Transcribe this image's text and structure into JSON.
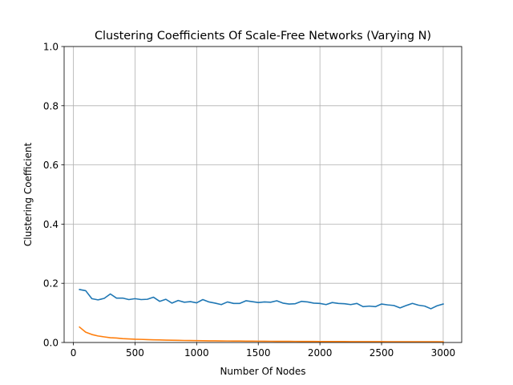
{
  "chart_data": {
    "type": "line",
    "title": "Clustering Coefficients Of Scale-Free Networks (Varying N)",
    "xlabel": "Number Of Nodes",
    "ylabel": "Clustering Coefficient",
    "xlim": [
      -75,
      3150
    ],
    "ylim": [
      0.0,
      1.0
    ],
    "xticks": [
      0,
      500,
      1000,
      1500,
      2000,
      2500,
      3000
    ],
    "xtick_labels": [
      "0",
      "500",
      "1000",
      "1500",
      "2000",
      "2500",
      "3000"
    ],
    "yticks": [
      0.0,
      0.2,
      0.4,
      0.6,
      0.8,
      1.0
    ],
    "ytick_labels": [
      "0.0",
      "0.2",
      "0.4",
      "0.6",
      "0.8",
      "1.0"
    ],
    "grid": true,
    "x": [
      50,
      100,
      150,
      200,
      250,
      300,
      350,
      400,
      450,
      500,
      550,
      600,
      650,
      700,
      750,
      800,
      850,
      900,
      950,
      1000,
      1050,
      1100,
      1150,
      1200,
      1250,
      1300,
      1350,
      1400,
      1450,
      1500,
      1550,
      1600,
      1650,
      1700,
      1750,
      1800,
      1850,
      1900,
      1950,
      2000,
      2050,
      2100,
      2150,
      2200,
      2250,
      2300,
      2350,
      2400,
      2450,
      2500,
      2550,
      2600,
      2650,
      2700,
      2750,
      2800,
      2850,
      2900,
      2950,
      3000
    ],
    "series": [
      {
        "color": "#1f77b4",
        "values": [
          0.179,
          0.175,
          0.148,
          0.144,
          0.149,
          0.164,
          0.15,
          0.15,
          0.145,
          0.148,
          0.145,
          0.146,
          0.153,
          0.139,
          0.146,
          0.133,
          0.142,
          0.136,
          0.138,
          0.134,
          0.145,
          0.137,
          0.133,
          0.128,
          0.137,
          0.132,
          0.132,
          0.141,
          0.138,
          0.135,
          0.137,
          0.136,
          0.141,
          0.133,
          0.13,
          0.131,
          0.139,
          0.137,
          0.133,
          0.132,
          0.128,
          0.135,
          0.132,
          0.131,
          0.128,
          0.132,
          0.121,
          0.123,
          0.121,
          0.13,
          0.127,
          0.125,
          0.117,
          0.125,
          0.132,
          0.126,
          0.123,
          0.114,
          0.124,
          0.13
        ]
      },
      {
        "color": "#ff7f0e",
        "values": [
          0.052,
          0.035,
          0.027,
          0.022,
          0.019,
          0.016,
          0.015,
          0.013,
          0.012,
          0.011,
          0.0105,
          0.0097,
          0.009,
          0.0085,
          0.008,
          0.0076,
          0.0072,
          0.0068,
          0.0065,
          0.0062,
          0.006,
          0.0057,
          0.0055,
          0.0053,
          0.0051,
          0.0049,
          0.0048,
          0.0046,
          0.0045,
          0.0044,
          0.0042,
          0.0041,
          0.004,
          0.0039,
          0.0038,
          0.0037,
          0.0036,
          0.0035,
          0.0035,
          0.0034,
          0.0033,
          0.0032,
          0.0032,
          0.0031,
          0.003,
          0.003,
          0.0029,
          0.0029,
          0.0028,
          0.0028,
          0.0027,
          0.0027,
          0.0026,
          0.0026,
          0.0025,
          0.0025,
          0.0025,
          0.0024,
          0.0024,
          0.0023
        ]
      }
    ]
  }
}
